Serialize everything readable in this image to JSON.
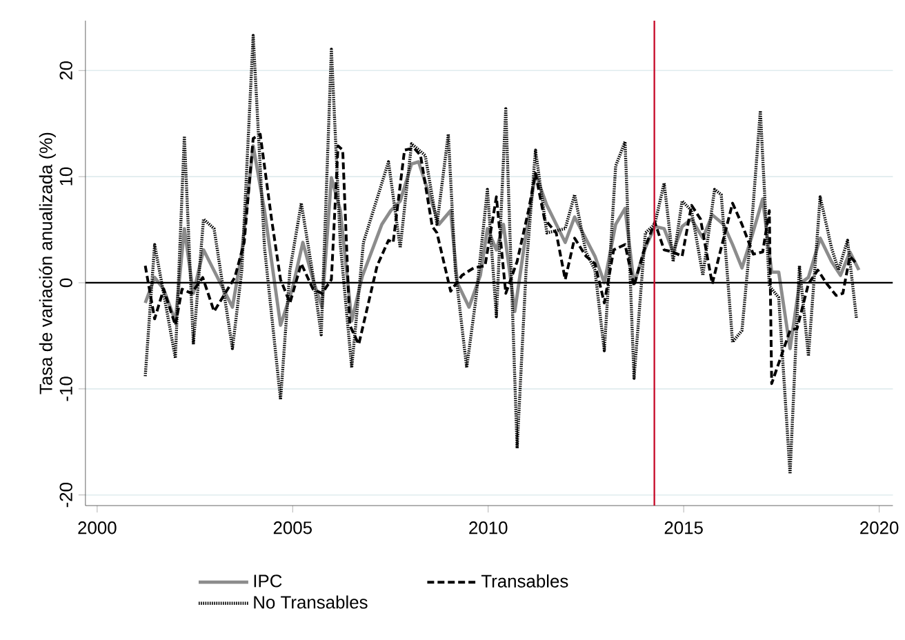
{
  "chart_data": {
    "type": "line",
    "ylabel": "Tasa de variación anualizada (%)",
    "xlim": [
      1999.7,
      2020.35
    ],
    "ylim": [
      -21,
      24.7
    ],
    "xticks": [
      2000,
      2005,
      2010,
      2015,
      2020
    ],
    "yticks": [
      -20,
      -10,
      0,
      10,
      20
    ],
    "grid": "y",
    "legend": "bottom",
    "marker": "none",
    "ref_lines": [
      {
        "axis": "y",
        "value": 0,
        "color": "#000000"
      },
      {
        "axis": "x",
        "value": 2014.25,
        "color": "#c8102e"
      }
    ],
    "series": [
      {
        "name": "IPC",
        "color": "#8c8c8c",
        "line_style": "solid",
        "x": [
          2001.23,
          2001.47,
          2001.7,
          2002.0,
          2002.23,
          2002.46,
          2002.72,
          2003.05,
          2003.46,
          2003.7,
          2003.99,
          2004.28,
          2004.69,
          2004.99,
          2005.26,
          2005.52,
          2005.75,
          2005.99,
          2006.22,
          2006.51,
          2006.78,
          2007.28,
          2007.51,
          2007.75,
          2008.04,
          2008.22,
          2008.74,
          2009.04,
          2009.21,
          2009.51,
          2009.8,
          2009.98,
          2010.21,
          2010.39,
          2010.68,
          2010.97,
          2011.21,
          2011.5,
          2011.97,
          2012.21,
          2012.73,
          2012.97,
          2013.26,
          2013.5,
          2013.73,
          2014.02,
          2014.26,
          2014.5,
          2014.73,
          2014.96,
          2015.2,
          2015.49,
          2015.73,
          2016.02,
          2016.25,
          2016.49,
          2016.73,
          2017.02,
          2017.25,
          2017.43,
          2017.72,
          2017.96,
          2018.19,
          2018.49,
          2018.78,
          2019.01,
          2019.25,
          2019.48
        ],
        "values": [
          -1.9,
          0.5,
          -0.6,
          -3.6,
          5.1,
          -1,
          3.1,
          0.7,
          -2.3,
          2.9,
          12.9,
          6.8,
          -4,
          -0.6,
          3.8,
          0.3,
          -2.3,
          9.9,
          6.8,
          -3.6,
          0.6,
          5.5,
          6.8,
          7.7,
          11.2,
          11.4,
          5.5,
          6.8,
          0,
          -2.3,
          0.7,
          5.1,
          3.1,
          5.5,
          -2.7,
          4.7,
          10.3,
          7.3,
          3.8,
          6.2,
          2.5,
          0,
          5.5,
          7,
          -0.1,
          3.3,
          5.3,
          5.1,
          2.9,
          5.3,
          6,
          4.2,
          6.4,
          5.5,
          3.6,
          1.4,
          4.2,
          7.9,
          1,
          1,
          -6.2,
          -0.1,
          0.5,
          4.2,
          2,
          0.7,
          2.9,
          1.2
        ]
      },
      {
        "name": "Transables",
        "color": "#000000",
        "line_style": "dashed",
        "x": [
          2001.23,
          2001.47,
          2001.7,
          2002.0,
          2002.17,
          2002.41,
          2002.7,
          2002.99,
          2003.52,
          2003.76,
          2003.99,
          2004.17,
          2004.46,
          2004.69,
          2004.93,
          2005.22,
          2005.52,
          2005.75,
          2005.99,
          2006.16,
          2006.28,
          2006.46,
          2006.69,
          2007.16,
          2007.45,
          2007.57,
          2007.86,
          2008.1,
          2008.27,
          2008.57,
          2008.69,
          2009.04,
          2009.33,
          2009.63,
          2009.92,
          2010.21,
          2010.45,
          2010.74,
          2011.03,
          2011.21,
          2011.44,
          2011.74,
          2011.97,
          2012.21,
          2012.5,
          2012.73,
          2012.97,
          2013.21,
          2013.5,
          2013.73,
          2013.97,
          2014.26,
          2014.5,
          2014.73,
          2014.96,
          2015.2,
          2015.43,
          2015.73,
          2015.96,
          2016.25,
          2016.49,
          2016.78,
          2017.02,
          2017.19,
          2017.25,
          2017.72,
          2017.9,
          2018.19,
          2018.43,
          2018.66,
          2018.9,
          2019.07,
          2019.25,
          2019.42
        ],
        "values": [
          1.6,
          -3.4,
          -0.6,
          -4,
          -0.6,
          -1,
          0.5,
          -2.7,
          0.5,
          3.8,
          13.6,
          14,
          6,
          0.3,
          -1.9,
          1.8,
          -0.6,
          -1,
          0.3,
          12.9,
          12.5,
          -4,
          -5.8,
          1.6,
          4,
          3.8,
          12.5,
          12.7,
          12,
          5.3,
          4.7,
          -0.8,
          0.7,
          1.4,
          1.6,
          8.1,
          -1,
          2,
          6.8,
          10.3,
          6,
          4.7,
          0.3,
          4.2,
          2.5,
          1.8,
          -1.9,
          3.1,
          3.6,
          -0.3,
          2.9,
          5.7,
          3.1,
          2.9,
          2.5,
          7.3,
          6,
          -0.1,
          3.3,
          7.5,
          5.5,
          2.7,
          2.9,
          6.8,
          -9.5,
          -4.5,
          -4.3,
          -0.1,
          1.2,
          -0.1,
          -1.2,
          -1,
          2.5,
          1.8
        ]
      },
      {
        "name": "No Transables",
        "color": "#000000",
        "line_style": "dotted",
        "x": [
          2001.23,
          2001.47,
          2001.7,
          2002.0,
          2002.23,
          2002.46,
          2002.72,
          2002.99,
          2003.46,
          2003.7,
          2003.99,
          2004.28,
          2004.69,
          2004.93,
          2005.22,
          2005.52,
          2005.73,
          2005.99,
          2006.22,
          2006.51,
          2006.81,
          2007.45,
          2007.75,
          2008.04,
          2008.39,
          2008.69,
          2008.98,
          2009.16,
          2009.45,
          2009.69,
          2009.98,
          2010.21,
          2010.45,
          2010.74,
          2010.97,
          2011.21,
          2011.5,
          2011.97,
          2012.21,
          2012.5,
          2012.73,
          2012.97,
          2013.26,
          2013.5,
          2013.73,
          2014.02,
          2014.26,
          2014.5,
          2014.73,
          2014.96,
          2015.2,
          2015.49,
          2015.79,
          2015.96,
          2016.25,
          2016.49,
          2016.73,
          2016.96,
          2017.19,
          2017.43,
          2017.72,
          2017.96,
          2018.19,
          2018.49,
          2018.78,
          2018.96,
          2019.19,
          2019.42
        ],
        "values": [
          -8.8,
          3.6,
          -1,
          -7.1,
          13.8,
          -5.8,
          6,
          5.1,
          -6.2,
          1.2,
          23.3,
          3.3,
          -11,
          1.2,
          7.5,
          0.7,
          -4.9,
          22,
          3.6,
          -8,
          3.8,
          11.4,
          3.3,
          13.1,
          12,
          5.5,
          14,
          1.2,
          -8,
          -1.4,
          8.8,
          -3.2,
          16.4,
          -15.6,
          1.2,
          12.5,
          4.7,
          5.1,
          8.3,
          2.9,
          1.2,
          -6.4,
          11,
          13.3,
          -9,
          4.7,
          5.5,
          9.4,
          2,
          7.7,
          6.8,
          0.7,
          8.8,
          8.3,
          -5.6,
          -4.5,
          5.1,
          16.2,
          -0.3,
          -1.4,
          -18,
          1.6,
          -6.9,
          8.1,
          3.3,
          1.2,
          4,
          -3.4
        ]
      }
    ]
  }
}
